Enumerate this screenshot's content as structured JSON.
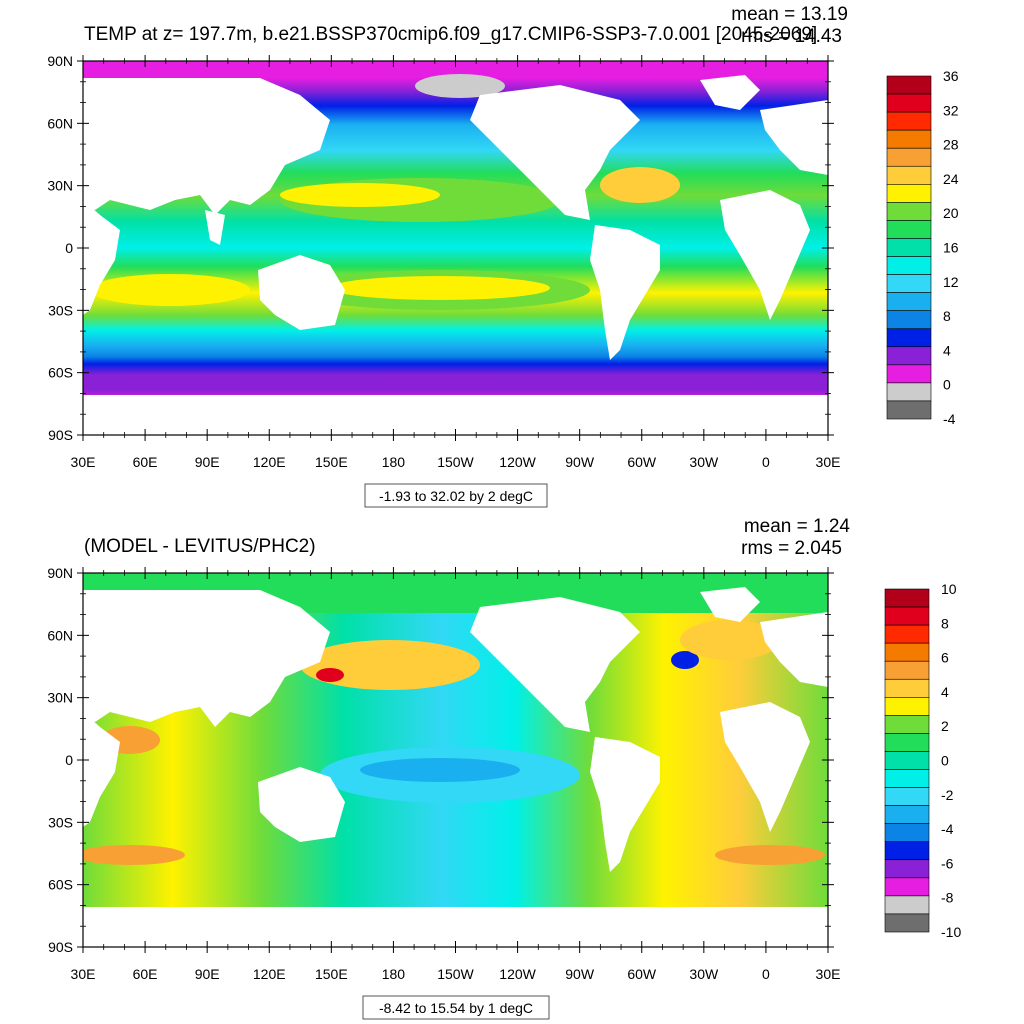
{
  "panels": [
    {
      "id": "top",
      "title": "TEMP at z= 197.7m, b.e21.BSSP370cmip6.f09_g17.CMIP6-SSP3-7.0.001 [2045-2069]",
      "stats": {
        "mean": "mean = 13.19",
        "rms": "rms = 14.43"
      },
      "contour_info": "-1.93 to 32.02 by 2 degC",
      "colorbar": {
        "labels": [
          "36",
          "32",
          "28",
          "24",
          "20",
          "16",
          "12",
          "8",
          "4",
          "0",
          "-4"
        ],
        "colors": [
          "#b3001a",
          "#e0001e",
          "#ff2a00",
          "#f47a00",
          "#f8a034",
          "#ffcd3a",
          "#fff200",
          "#6fdc3a",
          "#22dd5a",
          "#00e0a8",
          "#00f0e8",
          "#32d8f5",
          "#1ab0f0",
          "#0c84e6",
          "#0020e6",
          "#8b21d6",
          "#e61ee1",
          "#cccccc",
          "#6e6e6e"
        ]
      }
    },
    {
      "id": "bottom",
      "title": "(MODEL - LEVITUS/PHC2)",
      "stats": {
        "mean": "mean = 1.24",
        "rms": "rms = 2.045"
      },
      "contour_info": "-8.42 to 15.54 by 1 degC",
      "colorbar": {
        "labels": [
          "10",
          "8",
          "6",
          "4",
          "2",
          "0",
          "-2",
          "-4",
          "-6",
          "-8",
          "-10"
        ],
        "colors": [
          "#b3001a",
          "#e0001e",
          "#ff2a00",
          "#f47a00",
          "#f8a034",
          "#ffcd3a",
          "#fff200",
          "#6fdc3a",
          "#22dd5a",
          "#00e0a8",
          "#00f0e8",
          "#32d8f5",
          "#1ab0f0",
          "#0c84e6",
          "#0020e6",
          "#8b21d6",
          "#e61ee1",
          "#cccccc",
          "#6e6e6e"
        ]
      }
    }
  ],
  "axes": {
    "lat_labels": [
      "90N",
      "60N",
      "30N",
      "0",
      "30S",
      "60S",
      "90S"
    ],
    "lon_labels": [
      "30E",
      "60E",
      "90E",
      "120E",
      "150E",
      "180",
      "150W",
      "120W",
      "90W",
      "60W",
      "30W",
      "0",
      "30E"
    ]
  },
  "colors": {
    "land": "#ffffff",
    "frame": "#000000"
  }
}
